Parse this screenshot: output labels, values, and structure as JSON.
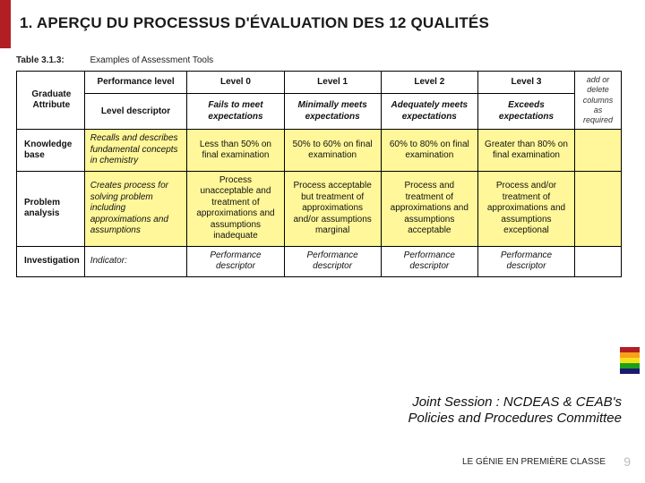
{
  "colors": {
    "accent_red": "#b11f24",
    "highlight_yellow": "#fff799",
    "text": "#1a1a1a",
    "page_num": "#bdbdbd",
    "stripes": [
      "#b11f24",
      "#f5a11a",
      "#f5e11a",
      "#1aa01a",
      "#1a1a70"
    ]
  },
  "heading": {
    "text": "1.  APERÇU DU PROCESSUS D'ÉVALUATION DES 12 QUALITÉS",
    "fontsize": 17
  },
  "table": {
    "caption_label": "Table 3.1.3:",
    "caption_text": "Examples of Assessment Tools",
    "columns": [
      "Graduate Attribute",
      "Performance level",
      "Level 0",
      "Level 1",
      "Level 2",
      "Level 3",
      ""
    ],
    "header_sub": [
      "",
      "Level descriptor",
      "Fails to meet expectations",
      "Minimally meets expectations",
      "Adequately meets expectations",
      "Exceeds expectations",
      "add or delete columns as required"
    ],
    "rows": [
      {
        "label": "Knowledge base",
        "indicator": "Recalls and describes fundamental concepts in chemistry",
        "cells": [
          "Less than 50% on final examination",
          "50% to 60% on final examination",
          "60% to 80% on final examination",
          "Greater than 80% on final examination"
        ],
        "highlight": true
      },
      {
        "label": "Problem analysis",
        "indicator": "Creates process for solving problem including approximations and assumptions",
        "cells": [
          "Process unacceptable and treatment of approximations and assumptions inadequate",
          "Process acceptable but treatment of approximations and/or assumptions marginal",
          "Process and treatment of approximations and assumptions acceptable",
          "Process and/or treatment of approximations and assumptions exceptional"
        ],
        "highlight": true
      },
      {
        "label": "Investigation",
        "indicator": "Indicator:",
        "cells": [
          "Performance descriptor",
          "Performance descriptor",
          "Performance descriptor",
          "Performance descriptor"
        ],
        "highlight": false
      }
    ]
  },
  "caption": {
    "line1": "Joint Session : NCDEAS & CEAB's",
    "line2": "Policies and Procedures Committee",
    "fontsize": 15
  },
  "footer": "LE GÉNIE EN PREMIÈRE CLASSE",
  "page_number": {
    "value": "9",
    "fontsize": 14
  }
}
